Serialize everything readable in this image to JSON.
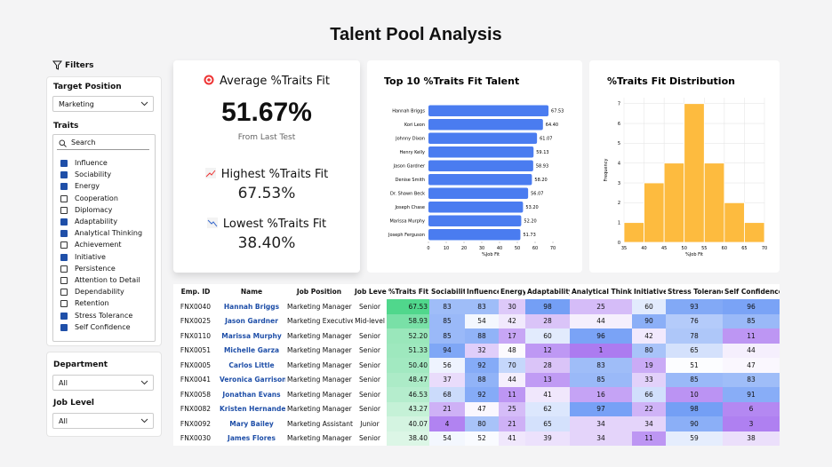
{
  "header": {
    "title": "Talent Pool Analysis"
  },
  "filters": {
    "label": "Filters",
    "target_position": {
      "label": "Target Position",
      "value": "Marketing"
    },
    "traits": {
      "label": "Traits",
      "search": "Search",
      "items": [
        {
          "name": "Influence",
          "checked": true
        },
        {
          "name": "Sociability",
          "checked": true
        },
        {
          "name": "Energy",
          "checked": true
        },
        {
          "name": "Cooperation",
          "checked": false
        },
        {
          "name": "Diplomacy",
          "checked": false
        },
        {
          "name": "Adaptability",
          "checked": true
        },
        {
          "name": "Analytical Thinking",
          "checked": true
        },
        {
          "name": "Achievement",
          "checked": false
        },
        {
          "name": "Initiative",
          "checked": true
        },
        {
          "name": "Persistence",
          "checked": false
        },
        {
          "name": "Attention to Detail",
          "checked": false
        },
        {
          "name": "Dependability",
          "checked": false
        },
        {
          "name": "Retention",
          "checked": false
        },
        {
          "name": "Stress Tolerance",
          "checked": true
        },
        {
          "name": "Self Confidence",
          "checked": true
        }
      ]
    },
    "department": {
      "label": "Department",
      "value": "All"
    },
    "job_level": {
      "label": "Job Level",
      "value": "All"
    }
  },
  "kpis": {
    "average": {
      "label": "Average %Traits Fit",
      "value": "51.67%",
      "note": "From Last Test"
    },
    "highest": {
      "label": "Highest %Traits Fit",
      "value": "67.53%"
    },
    "lowest": {
      "label": "Lowest %Traits Fit",
      "value": "38.40%"
    }
  },
  "chart_data": [
    {
      "type": "hbar",
      "title": "Top 10 %Traits Fit Talent",
      "x_label": "%Job Fit",
      "color": "#4a7cf0",
      "categories": [
        "Hannah Briggs",
        "Kori Leon",
        "Johnny Dixon",
        "Henry Kelly",
        "Jason Gardner",
        "Denise Smith",
        "Dr. Shawn Beck",
        "Joseph Chase",
        "Marissa Murphy",
        "Joseph Ferguson"
      ],
      "values": [
        67.53,
        64.4,
        61.07,
        59.13,
        58.93,
        58.2,
        56.07,
        53.2,
        52.2,
        51.73
      ],
      "value_labels": [
        "67.53",
        "64.40",
        "61.07",
        "59.13",
        "58.93",
        "58.20",
        "56.07",
        "53.20",
        "52.20",
        "51.73"
      ],
      "xlim": [
        0,
        70
      ],
      "xticks": [
        0,
        10,
        20,
        30,
        40,
        50,
        60,
        70
      ]
    },
    {
      "type": "histogram",
      "title": "%Traits Fit Distribution",
      "x_label": "%Job Fit",
      "y_label": "Frequency",
      "color": "#fdbb3f",
      "grid": true,
      "bins": [
        35,
        40,
        45,
        50,
        55,
        60,
        65,
        70
      ],
      "counts": [
        1,
        3,
        4,
        7,
        4,
        2,
        1
      ],
      "xlim": [
        35,
        70
      ],
      "xticks": [
        35,
        40,
        45,
        50,
        55,
        60,
        65,
        70
      ],
      "ylim": [
        0,
        7.3
      ],
      "yticks": [
        0,
        1,
        2,
        3,
        4,
        5,
        6,
        7
      ]
    }
  ],
  "table": {
    "columns": [
      "Emp. ID",
      "Name",
      "Job Position",
      "Job Level",
      "%Traits Fit",
      "Sociability",
      "Influence",
      "Energy",
      "Adaptability",
      "Analytical Thinking",
      "Initiative",
      "Stress Tolerance",
      "Self Confidence"
    ],
    "rows": [
      [
        "FNX0040",
        "Hannah Briggs",
        "Marketing Manager",
        "Senior",
        "67.53",
        "83",
        "83",
        "30",
        "98",
        "25",
        "60",
        "93",
        "96"
      ],
      [
        "FNX0025",
        "Jason Gardner",
        "Marketing Executive",
        "Mid-level",
        "58.93",
        "85",
        "54",
        "42",
        "28",
        "44",
        "90",
        "76",
        "85"
      ],
      [
        "FNX0110",
        "Marissa Murphy",
        "Marketing Manager",
        "Senior",
        "52.20",
        "85",
        "88",
        "17",
        "60",
        "96",
        "42",
        "78",
        "11"
      ],
      [
        "FNX0051",
        "Michelle Garza",
        "Marketing Manager",
        "Senior",
        "51.33",
        "94",
        "32",
        "48",
        "12",
        "1",
        "80",
        "65",
        "44"
      ],
      [
        "FNX0005",
        "Carlos Little",
        "Marketing Manager",
        "Senior",
        "50.40",
        "56",
        "92",
        "70",
        "28",
        "83",
        "19",
        "51",
        "47"
      ],
      [
        "FNX0041",
        "Veronica Garrison",
        "Marketing Manager",
        "Senior",
        "48.47",
        "37",
        "88",
        "44",
        "13",
        "85",
        "33",
        "85",
        "83"
      ],
      [
        "FNX0058",
        "Jonathan Evans",
        "Marketing Manager",
        "Senior",
        "46.53",
        "68",
        "92",
        "11",
        "41",
        "16",
        "66",
        "10",
        "91"
      ],
      [
        "FNX0082",
        "Kristen Hernandez",
        "Marketing Manager",
        "Senior",
        "43.27",
        "21",
        "47",
        "25",
        "62",
        "97",
        "22",
        "98",
        "6"
      ],
      [
        "FNX0092",
        "Mary Bailey",
        "Marketing Assistant",
        "Junior",
        "40.07",
        "4",
        "80",
        "21",
        "65",
        "34",
        "34",
        "90",
        "3"
      ],
      [
        "FNX0030",
        "James Flores",
        "Marketing Manager",
        "Senior",
        "38.40",
        "54",
        "52",
        "41",
        "39",
        "34",
        "11",
        "59",
        "38"
      ]
    ]
  }
}
